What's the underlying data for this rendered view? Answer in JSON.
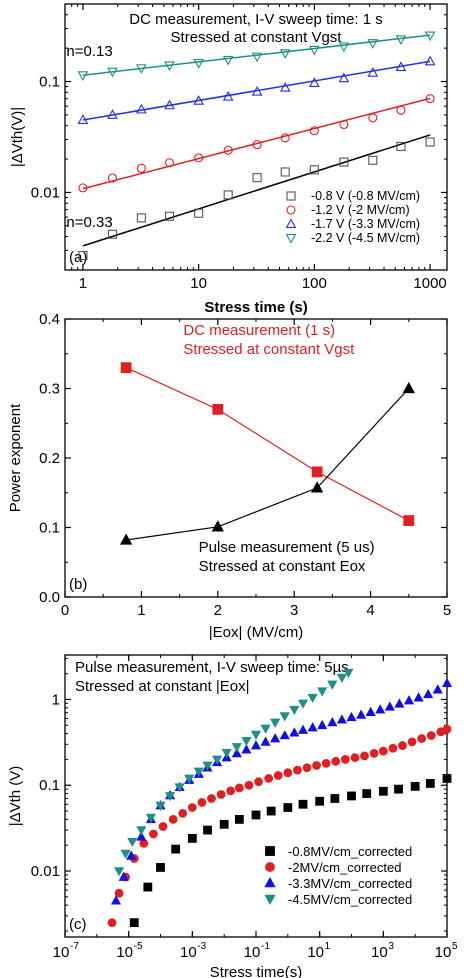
{
  "chart_data": [
    {
      "panel": "(a)",
      "type": "scatter",
      "title_lines": [
        "DC measurement, I-V sweep time: 1 s",
        "Stressed at constant Vgst"
      ],
      "xlabel": "Stress time (s)",
      "ylabel": "|ΔVth(V)|",
      "xscale": "log",
      "yscale": "log",
      "xlim": [
        0.7,
        1400
      ],
      "ylim": [
        0.002,
        0.5
      ],
      "xticks": [
        {
          "v": 1,
          "label": "1"
        },
        {
          "v": 10,
          "label": "10"
        },
        {
          "v": 100,
          "label": "100"
        },
        {
          "v": 1000,
          "label": "1000"
        }
      ],
      "yticks": [
        {
          "v": 0.01,
          "label": "0.01"
        },
        {
          "v": 0.1,
          "label": "0.1"
        }
      ],
      "annotations": [
        {
          "text": "n=0.13",
          "x": 0.72,
          "y": 0.17
        },
        {
          "text": "n=0.33",
          "x": 0.72,
          "y": 0.0049
        }
      ],
      "legend_position": "bottom-right",
      "series": [
        {
          "name": "-0.8 V (-0.8 MV/cm)",
          "color": "#555555",
          "marker": "square",
          "x": [
            1,
            1.8,
            3.2,
            5.6,
            10,
            18,
            32,
            56,
            100,
            180,
            320,
            560,
            1000
          ],
          "y": [
            0.0027,
            0.0042,
            0.0059,
            0.0061,
            0.0065,
            0.0095,
            0.0136,
            0.0153,
            0.016,
            0.0188,
            0.0195,
            0.026,
            0.0285
          ],
          "fit": [
            [
              1,
              0.0033
            ],
            [
              1000,
              0.033
            ]
          ]
        },
        {
          "name": "-1.2 V (-2 MV/cm)",
          "color": "#e02020",
          "marker": "circle",
          "x": [
            1,
            1.8,
            3.2,
            5.6,
            10,
            18,
            32,
            56,
            100,
            180,
            320,
            560,
            1000
          ],
          "y": [
            0.011,
            0.0135,
            0.0165,
            0.0185,
            0.0205,
            0.024,
            0.027,
            0.031,
            0.036,
            0.041,
            0.047,
            0.055,
            0.07
          ],
          "fit": [
            [
              1,
              0.0108
            ],
            [
              1000,
              0.0705
            ]
          ]
        },
        {
          "name": "-1.7 V (-3.3 MV/cm)",
          "color": "#2030e0",
          "marker": "triangle-up",
          "x": [
            1,
            1.8,
            3.2,
            5.6,
            10,
            18,
            32,
            56,
            100,
            180,
            320,
            560,
            1000
          ],
          "y": [
            0.045,
            0.05,
            0.056,
            0.061,
            0.067,
            0.073,
            0.081,
            0.088,
            0.097,
            0.107,
            0.12,
            0.135,
            0.152
          ],
          "fit": [
            [
              1,
              0.045
            ],
            [
              1000,
              0.152
            ]
          ]
        },
        {
          "name": "-2.2 V (-4.5 MV/cm)",
          "color": "#1f8f8a",
          "marker": "triangle-down",
          "x": [
            1,
            1.8,
            3.2,
            5.6,
            10,
            18,
            32,
            56,
            100,
            180,
            320,
            560,
            1000
          ],
          "y": [
            0.114,
            0.123,
            0.132,
            0.14,
            0.147,
            0.157,
            0.168,
            0.18,
            0.193,
            0.207,
            0.222,
            0.24,
            0.26
          ],
          "fit": [
            [
              1,
              0.114
            ],
            [
              1000,
              0.262
            ]
          ]
        }
      ]
    },
    {
      "panel": "(b)",
      "type": "line",
      "xlabel": "|Eox| (MV/cm)",
      "ylabel": "Power exponent",
      "xlim": [
        0,
        5
      ],
      "ylim": [
        0,
        0.4
      ],
      "xticks": [
        {
          "v": 0,
          "label": "0"
        },
        {
          "v": 1,
          "label": "1"
        },
        {
          "v": 2,
          "label": "2"
        },
        {
          "v": 3,
          "label": "3"
        },
        {
          "v": 4,
          "label": "4"
        },
        {
          "v": 5,
          "label": "5"
        }
      ],
      "yticks": [
        {
          "v": 0.0,
          "label": "0.0"
        },
        {
          "v": 0.1,
          "label": "0.1"
        },
        {
          "v": 0.2,
          "label": "0.2"
        },
        {
          "v": 0.3,
          "label": "0.3"
        },
        {
          "v": 0.4,
          "label": "0.4"
        }
      ],
      "labels": [
        {
          "lines": [
            "DC measurement (1 s)",
            "Stressed at constant Vgst"
          ],
          "color": "#e02020",
          "x": 1.0,
          "y": 0.377
        },
        {
          "lines": [
            "Pulse measurement (5 us)",
            "Stressed at constant Eox"
          ],
          "color": "#000000",
          "x": 1.2,
          "y": 0.065
        }
      ],
      "series": [
        {
          "color": "#e02020",
          "marker": "square",
          "x": [
            0.8,
            2.0,
            3.3,
            4.5
          ],
          "y": [
            0.33,
            0.27,
            0.18,
            0.11
          ]
        },
        {
          "color": "#000000",
          "marker": "triangle-up",
          "x": [
            0.8,
            2.0,
            3.3,
            4.5
          ],
          "y": [
            0.082,
            0.101,
            0.157,
            0.3
          ]
        }
      ]
    },
    {
      "panel": "(c)",
      "type": "scatter",
      "title_lines": [
        "Pulse measurement, I-V sweep time: 5µs",
        "Stressed at constant |Eox|"
      ],
      "xlabel": "Stress time(s)",
      "ylabel": "|ΔVth (V)",
      "xscale": "log",
      "yscale": "log",
      "xlim": [
        1e-07,
        100000.0
      ],
      "ylim": [
        0.0017,
        3.3
      ],
      "xticks": [
        {
          "v": 1e-07,
          "b": "10",
          "e": "-7"
        },
        {
          "v": 1e-05,
          "b": "10",
          "e": "-5"
        },
        {
          "v": 0.001,
          "b": "10",
          "e": "-3"
        },
        {
          "v": 0.1,
          "b": "10",
          "e": "-1"
        },
        {
          "v": 10,
          "b": "10",
          "e": "1"
        },
        {
          "v": 1000,
          "b": "10",
          "e": "3"
        },
        {
          "v": 100000,
          "b": "10",
          "e": "5"
        }
      ],
      "yticks": [
        {
          "v": 0.01,
          "label": "0.01"
        },
        {
          "v": 0.1,
          "label": "0.1"
        },
        {
          "v": 1,
          "label": "1"
        }
      ],
      "legend_position": "bottom-right",
      "series": [
        {
          "name": "-0.8MV/cm_corrected",
          "color": "#000000",
          "marker": "square",
          "x": [
            1.5e-05,
            4e-05,
            0.0001,
            0.0003,
            0.001,
            0.003,
            0.01,
            0.03,
            0.1,
            0.3,
            1,
            3,
            10,
            30,
            100,
            300,
            1000,
            3000,
            10000,
            30000,
            100000
          ],
          "y": [
            0.0025,
            0.0065,
            0.011,
            0.018,
            0.024,
            0.03,
            0.035,
            0.04,
            0.045,
            0.05,
            0.055,
            0.06,
            0.065,
            0.07,
            0.075,
            0.08,
            0.085,
            0.09,
            0.097,
            0.105,
            0.12
          ]
        },
        {
          "name": "-2MV/cm_corrected",
          "color": "#e02020",
          "marker": "circle",
          "x": [
            3e-06,
            5e-06,
            8e-06,
            1.5e-05,
            3e-05,
            6e-05,
            0.00012,
            0.00025,
            0.0005,
            0.001,
            0.002,
            0.004,
            0.008,
            0.016,
            0.03,
            0.06,
            0.12,
            0.25,
            0.5,
            1,
            2,
            4,
            8,
            16,
            32,
            64,
            128,
            256,
            512,
            1000,
            2000,
            4000,
            8000,
            16000,
            32000,
            64000,
            100000
          ],
          "y": [
            0.0025,
            0.0055,
            0.0085,
            0.014,
            0.021,
            0.027,
            0.033,
            0.04,
            0.047,
            0.055,
            0.063,
            0.07,
            0.078,
            0.086,
            0.093,
            0.1,
            0.11,
            0.12,
            0.13,
            0.14,
            0.15,
            0.16,
            0.17,
            0.18,
            0.19,
            0.2,
            0.21,
            0.22,
            0.235,
            0.25,
            0.27,
            0.29,
            0.32,
            0.35,
            0.38,
            0.42,
            0.45
          ]
        },
        {
          "name": "-3.3MV/cm_corrected",
          "color": "#1010e0",
          "marker": "triangle-up",
          "x": [
            4e-06,
            7e-06,
            1.2e-05,
            2.5e-05,
            5e-05,
            0.0001,
            0.0002,
            0.0004,
            0.0008,
            0.0016,
            0.003,
            0.006,
            0.012,
            0.025,
            0.05,
            0.1,
            0.2,
            0.4,
            0.8,
            1.6,
            3,
            6,
            12,
            25,
            50,
            100,
            200,
            400,
            800,
            1600,
            3200,
            6400,
            12800,
            25600,
            51200,
            100000
          ],
          "y": [
            0.0045,
            0.0085,
            0.015,
            0.025,
            0.04,
            0.058,
            0.076,
            0.095,
            0.115,
            0.135,
            0.16,
            0.185,
            0.21,
            0.235,
            0.26,
            0.29,
            0.32,
            0.35,
            0.38,
            0.41,
            0.44,
            0.47,
            0.5,
            0.54,
            0.58,
            0.62,
            0.66,
            0.71,
            0.76,
            0.82,
            0.89,
            0.97,
            1.05,
            1.15,
            1.3,
            1.55
          ]
        },
        {
          "name": "-4.5MV/cm_corrected",
          "color": "#1f8f8a",
          "marker": "triangle-down",
          "x": [
            5e-06,
            8e-06,
            1.3e-05,
            2.5e-05,
            5e-05,
            0.0001,
            0.0002,
            0.0004,
            0.0008,
            0.0016,
            0.003,
            0.006,
            0.012,
            0.025,
            0.05,
            0.1,
            0.2,
            0.4,
            0.8,
            1.6,
            3,
            6,
            12,
            25,
            50,
            80
          ],
          "y": [
            0.01,
            0.016,
            0.022,
            0.03,
            0.042,
            0.058,
            0.075,
            0.095,
            0.12,
            0.145,
            0.17,
            0.2,
            0.24,
            0.28,
            0.33,
            0.39,
            0.46,
            0.54,
            0.64,
            0.76,
            0.9,
            1.05,
            1.25,
            1.5,
            1.8,
            2.05
          ]
        }
      ]
    }
  ]
}
